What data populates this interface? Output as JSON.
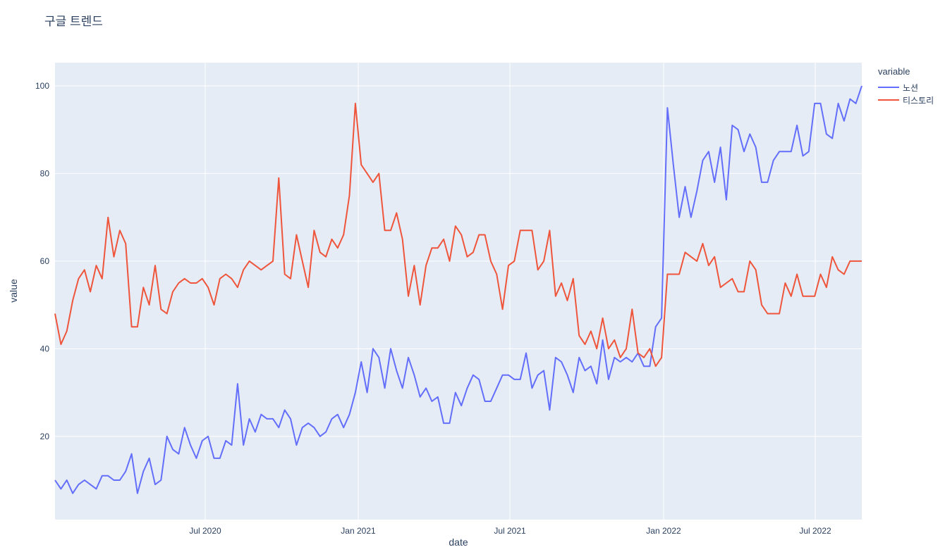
{
  "title": "구글 트렌드",
  "legend": {
    "title": "variable",
    "items": [
      {
        "label": "노션",
        "color": "#636EFA"
      },
      {
        "label": "티스토리",
        "color": "#EF553B"
      }
    ]
  },
  "axes": {
    "x_label": "date",
    "y_label": "value",
    "x_ticks": [
      {
        "label": "Jul 2020",
        "px": 291
      },
      {
        "label": "Jan 2021",
        "px": 508
      },
      {
        "label": "Jul 2021",
        "px": 723
      },
      {
        "label": "Jan 2022",
        "px": 941
      },
      {
        "label": "Jul 2022",
        "px": 1156
      }
    ],
    "y_ticks": [
      {
        "label": "20",
        "value": 20
      },
      {
        "label": "40",
        "value": 40
      },
      {
        "label": "60",
        "value": 60
      },
      {
        "label": "80",
        "value": 80
      },
      {
        "label": "100",
        "value": 100
      }
    ]
  },
  "colors": {
    "plot_background": "#E5ECF6",
    "gridline": "#FFFFFF",
    "text": "#2a3f5f",
    "page_background": "#FFFFFF"
  },
  "chart_data": {
    "type": "line",
    "title": "구글 트렌드",
    "xlabel": "date",
    "ylabel": "value",
    "legend_title": "variable",
    "legend_position": "top-right",
    "grid": true,
    "x_start_date": "2020-01-05",
    "x_interval_days": 7,
    "n_points": 138,
    "ylim": [
      1.0,
      105.3
    ],
    "xtick_labels": [
      "Jul 2020",
      "Jan 2021",
      "Jul 2021",
      "Jan 2022",
      "Jul 2022"
    ],
    "series": [
      {
        "name": "노션",
        "color": "#636EFA",
        "values": [
          10,
          8,
          10,
          7,
          9,
          10,
          9,
          8,
          11,
          11,
          10,
          10,
          12,
          16,
          7,
          12,
          15,
          9,
          10,
          20,
          17,
          16,
          22,
          18,
          15,
          19,
          20,
          15,
          15,
          19,
          18,
          32,
          18,
          24,
          21,
          25,
          24,
          24,
          22,
          26,
          24,
          18,
          22,
          23,
          22,
          20,
          21,
          24,
          25,
          22,
          25,
          30,
          37,
          30,
          40,
          38,
          31,
          40,
          35,
          31,
          38,
          34,
          29,
          31,
          28,
          29,
          23,
          23,
          30,
          27,
          31,
          34,
          33,
          28,
          28,
          31,
          34,
          34,
          33,
          33,
          39,
          31,
          34,
          35,
          26,
          38,
          37,
          34,
          30,
          38,
          35,
          36,
          32,
          42,
          33,
          38,
          37,
          38,
          37,
          39,
          36,
          36,
          45,
          47,
          95,
          82,
          70,
          77,
          70,
          76,
          83,
          85,
          78,
          86,
          74,
          91,
          90,
          85,
          89,
          86,
          78,
          78,
          83,
          85,
          85,
          85,
          91,
          84,
          85,
          96,
          96,
          89,
          88,
          96,
          92,
          97,
          96,
          100
        ]
      },
      {
        "name": "티스토리",
        "color": "#EF553B",
        "values": [
          48,
          41,
          44,
          51,
          56,
          58,
          53,
          59,
          56,
          70,
          61,
          67,
          64,
          45,
          45,
          54,
          50,
          59,
          49,
          48,
          53,
          55,
          56,
          55,
          55,
          56,
          54,
          50,
          56,
          57,
          56,
          54,
          58,
          60,
          59,
          58,
          59,
          60,
          79,
          57,
          56,
          66,
          60,
          54,
          67,
          62,
          61,
          65,
          63,
          66,
          75,
          96,
          82,
          80,
          78,
          80,
          67,
          67,
          71,
          65,
          52,
          59,
          50,
          59,
          63,
          63,
          65,
          60,
          68,
          66,
          61,
          62,
          66,
          66,
          60,
          57,
          49,
          59,
          60,
          67,
          67,
          67,
          58,
          60,
          67,
          52,
          55,
          51,
          56,
          43,
          41,
          44,
          40,
          47,
          40,
          42,
          38,
          40,
          49,
          39,
          38,
          40,
          36,
          38,
          57,
          57,
          57,
          62,
          61,
          60,
          64,
          59,
          61,
          54,
          55,
          56,
          53,
          53,
          60,
          58,
          50,
          48,
          48,
          48,
          55,
          52,
          57,
          52,
          52,
          52,
          57,
          54,
          61,
          58,
          57,
          60,
          60,
          60
        ]
      }
    ]
  }
}
